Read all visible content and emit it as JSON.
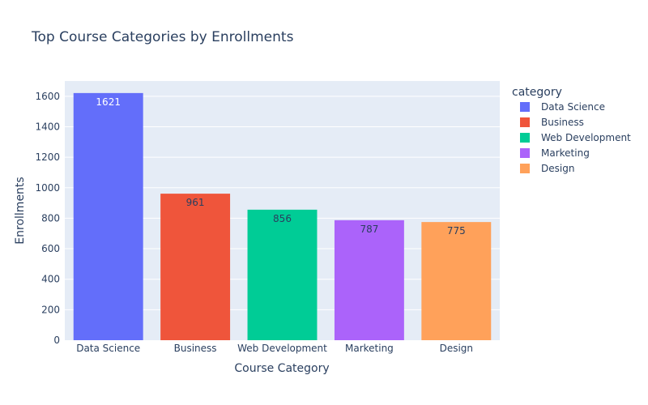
{
  "chart_data": {
    "type": "bar",
    "title": "Top Course Categories by Enrollments",
    "xlabel": "Course Category",
    "ylabel": "Enrollments",
    "categories": [
      "Data Science",
      "Business",
      "Web Development",
      "Marketing",
      "Design"
    ],
    "values": [
      1621,
      961,
      856,
      787,
      775
    ],
    "colors": [
      "#636efa",
      "#ef553b",
      "#00cc96",
      "#ab63fa",
      "#ffa15a"
    ],
    "label_colors": [
      "#ffffff",
      "#2a3f5f",
      "#2a3f5f",
      "#2a3f5f",
      "#2a3f5f"
    ],
    "ylim": [
      0,
      1700
    ],
    "yticks": [
      0,
      200,
      400,
      600,
      800,
      1000,
      1200,
      1400,
      1600
    ],
    "grid": true,
    "legend": {
      "title": "category",
      "placement": "right",
      "entries": [
        "Data Science",
        "Business",
        "Web Development",
        "Marketing",
        "Design"
      ]
    }
  }
}
